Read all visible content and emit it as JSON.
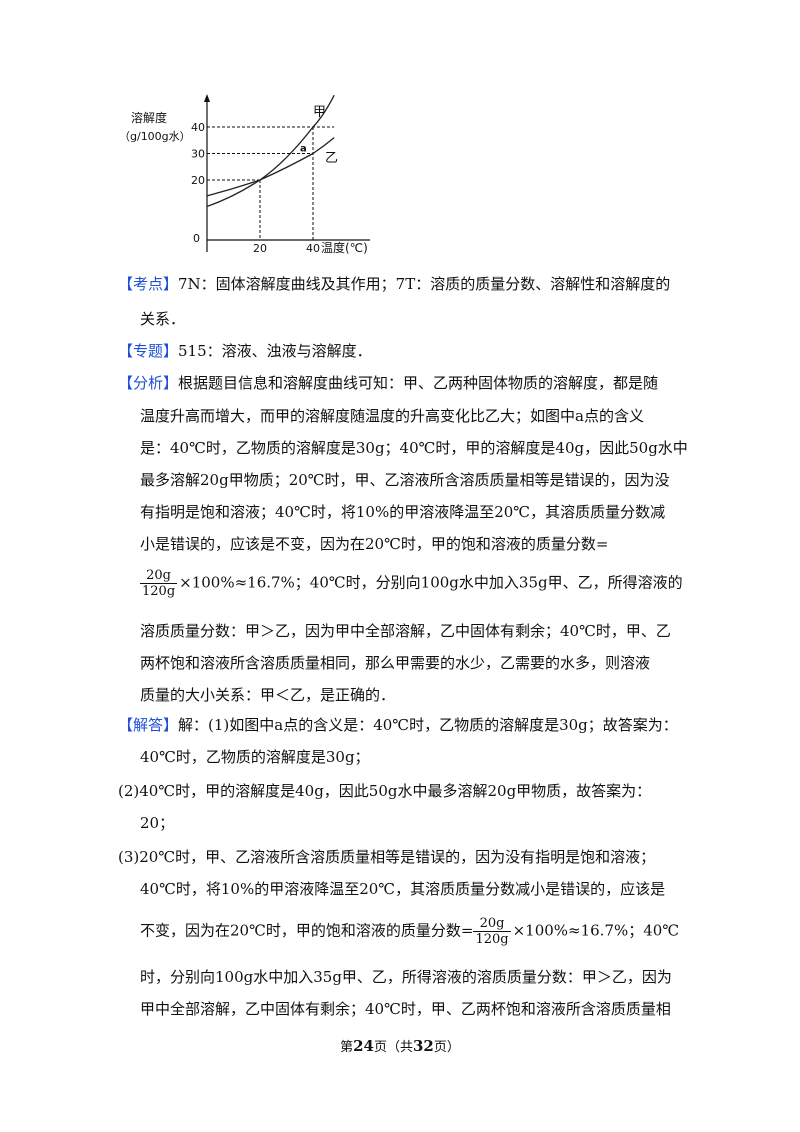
{
  "chart": {
    "ylabel_line1": "溶解度",
    "ylabel_line2": "（g/100g水）",
    "xlabel": "温度(℃)",
    "origin": "0",
    "x_ticks": [
      "20",
      "40"
    ],
    "y_ticks": [
      "20",
      "30",
      "40"
    ],
    "series_labels": [
      "甲",
      "乙"
    ],
    "point_label": "a"
  },
  "chart_data": {
    "type": "line",
    "x_unit": "温度(℃)",
    "y_unit": "溶解度（g/100g水）",
    "series": [
      {
        "name": "甲",
        "x": [
          0,
          20,
          40,
          48
        ],
        "y": [
          10,
          20,
          40,
          52
        ]
      },
      {
        "name": "乙",
        "x": [
          0,
          20,
          40,
          48
        ],
        "y": [
          14,
          20,
          30,
          36
        ]
      }
    ],
    "annotations": [
      {
        "label": "a",
        "x": 40,
        "y": 30
      }
    ],
    "xlim": [
      0,
      50
    ],
    "ylim": [
      0,
      52
    ]
  },
  "sections": {
    "kaodian_tag": "【考点】",
    "kaodian_l1": "7N：固体溶解度曲线及其作用；7T：溶质的质量分数、溶解性和溶解度的",
    "kaodian_l2": "关系．",
    "zhuanti_tag": "【专题】",
    "zhuanti_l1": "515：溶液、浊液与溶解度．",
    "fenxi_tag": "【分析】",
    "fenxi_l1": "根据题目信息和溶解度曲线可知：甲、乙两种固体物质的溶解度，都是随",
    "fenxi_l2": "温度升高而增大，而甲的溶解度随温度的升高变化比乙大；如图中a点的含义",
    "fenxi_l3": "是：40℃时，乙物质的溶解度是30g；40℃时，甲的溶解度是40g，因此50g水中",
    "fenxi_l4": "最多溶解20g甲物质；20℃时，甲、乙溶液所含溶质质量相等是错误的，因为没",
    "fenxi_l5": "有指明是饱和溶液；40℃时，将10%的甲溶液降温至20℃，其溶质质量分数减",
    "fenxi_l6": "小是错误的，应该是不变，因为在20℃时，甲的饱和溶液的质量分数=",
    "frac_num": "20g",
    "frac_den": "120g",
    "fenxi_l7": "×100%≈16.7%；40℃时，分别向100g水中加入35g甲、乙，所得溶液的",
    "fenxi_l8": "溶质质量分数：甲＞乙，因为甲中全部溶解，乙中固体有剩余；40℃时，甲、乙",
    "fenxi_l9": "两杯饱和溶液所含溶质质量相同，那么甲需要的水少，乙需要的水多，则溶液",
    "fenxi_l10": "质量的大小关系：甲＜乙，是正确的．",
    "jieda_tag": "【解答】",
    "jieda_l1": "解：(1)如图中a点的含义是：40℃时，乙物质的溶解度是30g；故答案为：",
    "jieda_l2": "40℃时，乙物质的溶解度是30g；",
    "jieda_l3": "(2)40℃时，甲的溶解度是40g，因此50g水中最多溶解20g甲物质，故答案为：",
    "jieda_l4": "20；",
    "jieda_l5": "(3)20℃时，甲、乙溶液所含溶质质量相等是错误的，因为没有指明是饱和溶液；",
    "jieda_l6": "40℃时，将10%的甲溶液降温至20℃，其溶质质量分数减小是错误的，应该是",
    "jieda_l7a": "不变，因为在20℃时，甲的饱和溶液的质量分数=",
    "jieda_l7b": "×100%≈16.7%；40℃",
    "jieda_l8": "时，分别向100g水中加入35g甲、乙，所得溶液的溶质质量分数：甲＞乙，因为",
    "jieda_l9": "甲中全部溶解，乙中固体有剩余；40℃时，甲、乙两杯饱和溶液所含溶质质量相"
  },
  "footer": {
    "prefix": "第",
    "page": "24",
    "mid": "页（共",
    "total": "32",
    "suffix": "页）"
  }
}
